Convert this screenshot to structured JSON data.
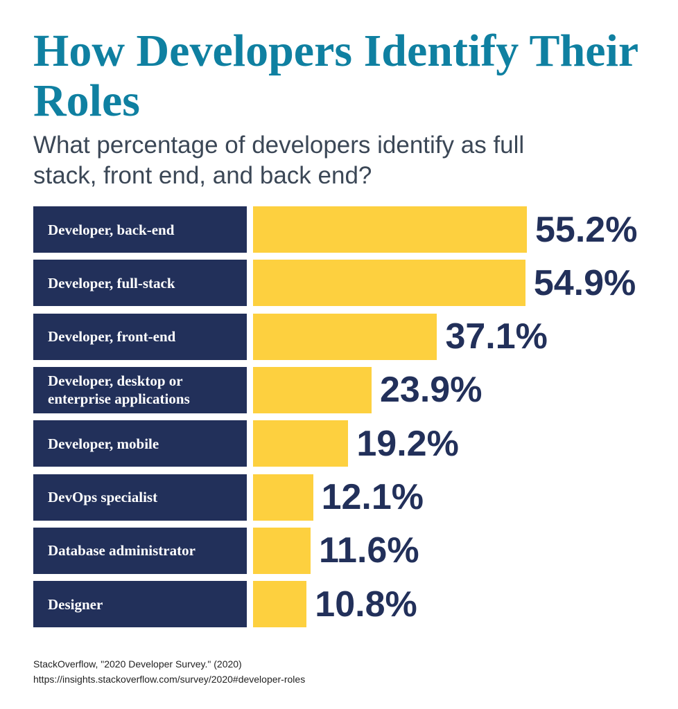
{
  "chart_data": {
    "type": "bar",
    "orientation": "horizontal",
    "title": "How Developers Identify Their Roles",
    "subtitle": "What percentage of developers identify as full stack, front end, and back end?",
    "categories": [
      "Developer, back-end",
      "Developer, full-stack",
      "Developer, front-end",
      "Developer, desktop or enterprise applications",
      "Developer, mobile",
      "DevOps specialist",
      "Database administrator",
      "Designer"
    ],
    "values": [
      55.2,
      54.9,
      37.1,
      23.9,
      19.2,
      12.1,
      11.6,
      10.8
    ],
    "value_labels": [
      "55.2%",
      "54.9%",
      "37.1%",
      "23.9%",
      "19.2%",
      "12.1%",
      "11.6%",
      "10.8%"
    ],
    "color": "#fdd03f",
    "label_color": "#22305a",
    "source": "StackOverflow, \"2020 Developer Survey.\" (2020)",
    "source_url": "https://insights.stackoverflow.com/survey/2020#developer-roles"
  }
}
